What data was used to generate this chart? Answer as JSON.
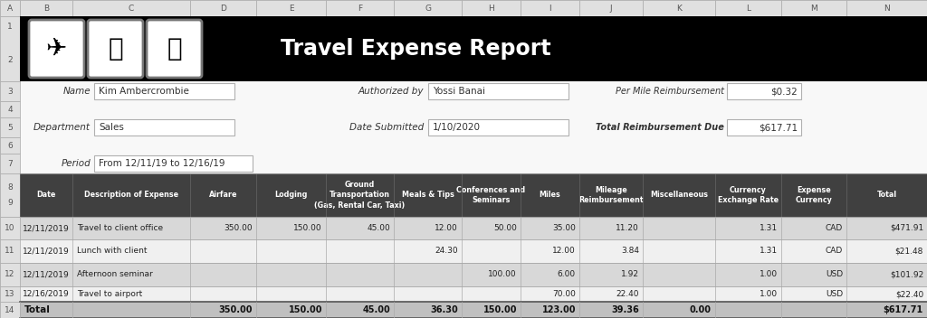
{
  "title": "Travel Expense Report",
  "title_bar_color": "#000000",
  "title_text_color": "#ffffff",
  "bg_color": "#f5f5f5",
  "header_bg": "#404040",
  "header_fg": "#ffffff",
  "row_colors": [
    "#d8d8d8",
    "#f0f0f0",
    "#d8d8d8",
    "#f0f0f0"
  ],
  "total_row_bg": "#c0c0c0",
  "field_labels": [
    "Name",
    "Department",
    "Period"
  ],
  "field_values": [
    "Kim Ambercrombie",
    "Sales",
    "From 12/11/19 to 12/16/19"
  ],
  "right_field_labels": [
    "Authorized by",
    "Date Submitted"
  ],
  "right_field_values": [
    "Yossi Banai",
    "1/10/2020"
  ],
  "far_right_labels": [
    "Per Mile Reimbursement",
    "Total Reimbursement Due"
  ],
  "far_right_values": [
    "$0.32",
    "$617.71"
  ],
  "col_headers": [
    "Date",
    "Description of Expense",
    "Airfare",
    "Lodging",
    "Ground\nTransportation\n(Gas, Rental Car, Taxi)",
    "Meals & Tips",
    "Conferences and\nSeminars",
    "Miles",
    "Mileage\nReimbursement",
    "Miscellaneous",
    "Currency\nExchange Rate",
    "Expense\nCurrency",
    "Total"
  ],
  "rows": [
    [
      "12/11/2019",
      "Travel to client office",
      "350.00",
      "150.00",
      "45.00",
      "12.00",
      "50.00",
      "35.00",
      "11.20",
      "",
      "1.31",
      "CAD",
      "$471.91"
    ],
    [
      "12/11/2019",
      "Lunch with client",
      "",
      "",
      "",
      "24.30",
      "",
      "12.00",
      "3.84",
      "",
      "1.31",
      "CAD",
      "$21.48"
    ],
    [
      "12/11/2019",
      "Afternoon seminar",
      "",
      "",
      "",
      "",
      "100.00",
      "6.00",
      "1.92",
      "",
      "1.00",
      "USD",
      "$101.92"
    ],
    [
      "12/16/2019",
      "Travel to airport",
      "",
      "",
      "",
      "",
      "",
      "70.00",
      "22.40",
      "",
      "1.00",
      "USD",
      "$22.40"
    ]
  ],
  "total_row": [
    "Total",
    "",
    "350.00",
    "150.00",
    "45.00",
    "36.30",
    "150.00",
    "123.00",
    "39.36",
    "0.00",
    "",
    "",
    "$617.71"
  ],
  "sheet_bg": "#c8c8c8",
  "col_header_row_labels": [
    "A",
    "B",
    "C",
    "D",
    "E",
    "F",
    "G",
    "H",
    "I",
    "J",
    "K",
    "L",
    "M",
    "N"
  ],
  "row_numbers": [
    "1",
    "2",
    "3",
    "4",
    "5",
    "6",
    "7",
    "8",
    "9",
    "10",
    "11",
    "12",
    "13",
    "14"
  ]
}
